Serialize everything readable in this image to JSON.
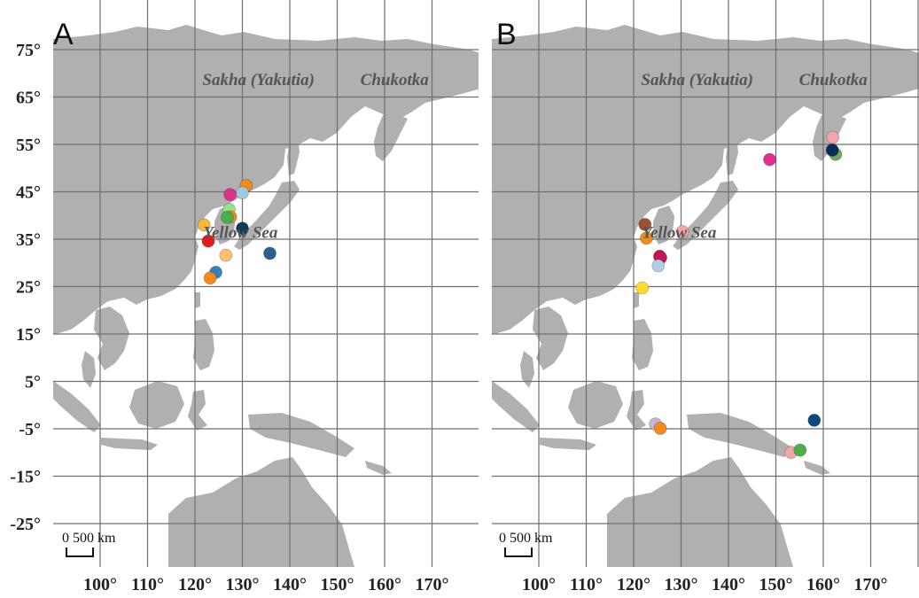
{
  "panels": [
    {
      "id": "A",
      "letter": "A",
      "region_labels": [
        {
          "name": "Sakha (Yakutia)",
          "lon": 133.4,
          "lat": 67.5
        },
        {
          "name": "Chukotka",
          "lon": 162.1,
          "lat": 67.5
        },
        {
          "name": "Yellow Sea",
          "lon": 129.6,
          "lat": 35.3
        }
      ],
      "sites": [
        {
          "lon": 130.8,
          "lat": 46.3,
          "color": "#f28a1c"
        },
        {
          "lon": 127.4,
          "lat": 44.4,
          "color": "#e0308c"
        },
        {
          "lon": 130.0,
          "lat": 44.8,
          "color": "#9ecae1"
        },
        {
          "lon": 127.2,
          "lat": 41.3,
          "color": "#98df8a"
        },
        {
          "lon": 127.5,
          "lat": 39.7,
          "color": "#f28a1c"
        },
        {
          "lon": 126.8,
          "lat": 39.6,
          "color": "#4daf4a"
        },
        {
          "lon": 121.9,
          "lat": 38.0,
          "color": "#f6b93b"
        },
        {
          "lon": 130.0,
          "lat": 37.3,
          "color": "#0b3d5c"
        },
        {
          "lon": 122.8,
          "lat": 34.6,
          "color": "#e41a1c"
        },
        {
          "lon": 126.5,
          "lat": 31.6,
          "color": "#fdbf6f"
        },
        {
          "lon": 135.8,
          "lat": 32.0,
          "color": "#2c5f8a"
        },
        {
          "lon": 124.4,
          "lat": 28.0,
          "color": "#3182bd"
        },
        {
          "lon": 123.2,
          "lat": 26.8,
          "color": "#f28a1c"
        }
      ]
    },
    {
      "id": "B",
      "letter": "B",
      "region_labels": [
        {
          "name": "Sakha (Yakutia)",
          "lon": 133.4,
          "lat": 67.5
        },
        {
          "name": "Chukotka",
          "lon": 162.1,
          "lat": 67.5
        },
        {
          "name": "Yellow Sea",
          "lon": 129.6,
          "lat": 35.3
        }
      ],
      "sites": [
        {
          "lon": 148.7,
          "lat": 51.8,
          "color": "#e0308c"
        },
        {
          "lon": 162.0,
          "lat": 56.5,
          "color": "#f4a6a6"
        },
        {
          "lon": 162.6,
          "lat": 52.9,
          "color": "#6aaa5a"
        },
        {
          "lon": 161.9,
          "lat": 53.8,
          "color": "#0b2a5c"
        },
        {
          "lon": 122.4,
          "lat": 38.1,
          "color": "#a0522d"
        },
        {
          "lon": 122.7,
          "lat": 35.2,
          "color": "#f28a1c"
        },
        {
          "lon": 130.3,
          "lat": 36.6,
          "color": "#f4a6a6"
        },
        {
          "lon": 125.5,
          "lat": 31.4,
          "color": "#e41a1c"
        },
        {
          "lon": 125.7,
          "lat": 31.1,
          "color": "#c2185b"
        },
        {
          "lon": 125.2,
          "lat": 29.4,
          "color": "#b3cde3"
        },
        {
          "lon": 121.8,
          "lat": 24.7,
          "color": "#ffd92f"
        },
        {
          "lon": 124.6,
          "lat": -4.0,
          "color": "#cab2d6"
        },
        {
          "lon": 125.6,
          "lat": -4.9,
          "color": "#f28a1c"
        },
        {
          "lon": 158.1,
          "lat": -3.2,
          "color": "#0b4a7a"
        },
        {
          "lon": 153.2,
          "lat": -10.0,
          "color": "#f4a6a6"
        },
        {
          "lon": 155.1,
          "lat": -9.5,
          "color": "#4daf4a"
        }
      ]
    }
  ],
  "lat_ticks": [
    {
      "lat": 75,
      "label": "75°"
    },
    {
      "lat": 65,
      "label": "65°"
    },
    {
      "lat": 55,
      "label": "55°"
    },
    {
      "lat": 45,
      "label": "45°"
    },
    {
      "lat": 35,
      "label": "35°"
    },
    {
      "lat": 25,
      "label": "25°"
    },
    {
      "lat": 15,
      "label": "15°"
    },
    {
      "lat": 5,
      "label": "5°"
    },
    {
      "lat": -5,
      "label": "-5°"
    },
    {
      "lat": -15,
      "label": "-15°"
    },
    {
      "lat": -25,
      "label": "-25°"
    }
  ],
  "lon_ticks": [
    {
      "lon": 100,
      "label": "100°"
    },
    {
      "lon": 110,
      "label": "110°"
    },
    {
      "lon": 120,
      "label": "120°"
    },
    {
      "lon": 130,
      "label": "130°"
    },
    {
      "lon": 140,
      "label": "140°"
    },
    {
      "lon": 150,
      "label": "150°"
    },
    {
      "lon": 160,
      "label": "160°"
    },
    {
      "lon": 170,
      "label": "170°"
    }
  ],
  "scale_bar": {
    "label": "0 500 km"
  },
  "colors": {
    "land": "#b0b0b0",
    "ocean": "#ffffff",
    "grid": "#6f6f6f"
  }
}
